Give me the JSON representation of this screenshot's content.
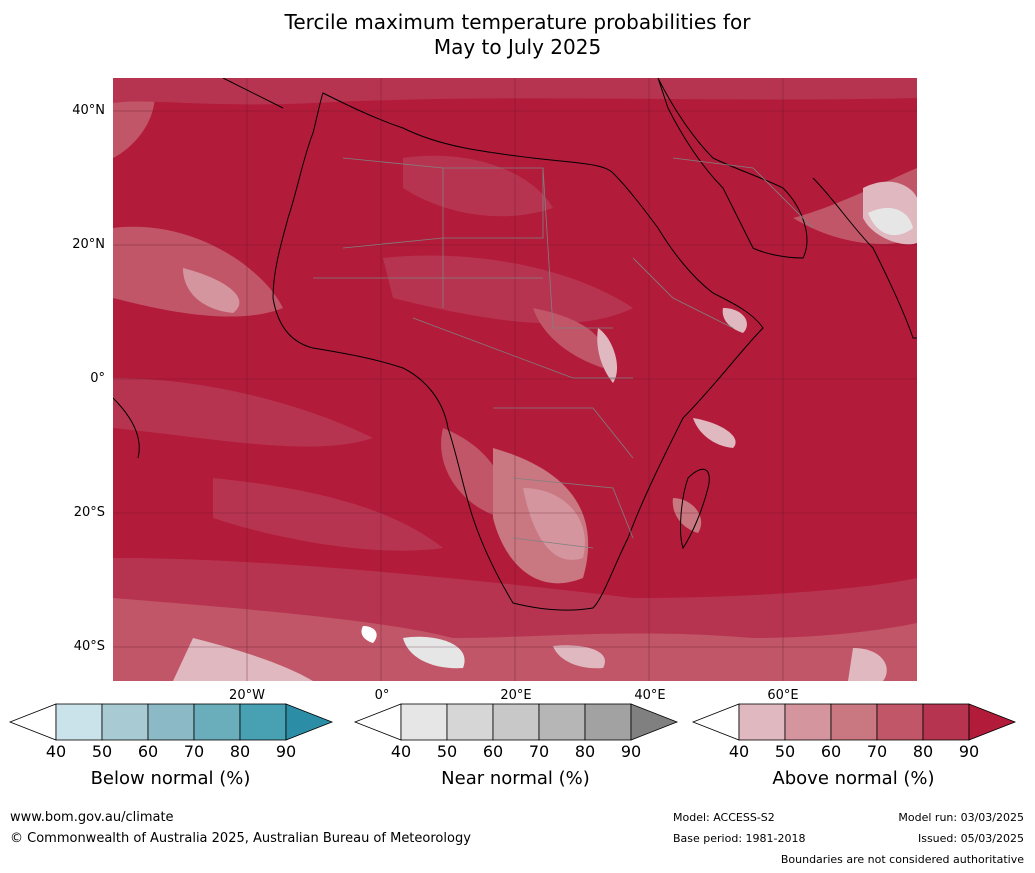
{
  "title": {
    "line1": "Tercile maximum temperature probabilities for",
    "line2": "May to July 2025"
  },
  "map": {
    "lat_labels": [
      "40°N",
      "20°N",
      "0°",
      "20°S",
      "40°S"
    ],
    "lon_labels": [
      "20°W",
      "0°",
      "20°E",
      "40°E",
      "60°E"
    ],
    "dominant_color": "#b31b3a",
    "region": "Africa"
  },
  "legends": [
    {
      "name": "Below normal (%)",
      "ticks": [
        "40",
        "50",
        "60",
        "70",
        "80",
        "90"
      ],
      "colors": [
        "#ffffff",
        "#cae3ea",
        "#a8cbd3",
        "#8bb9c5",
        "#6aadbb",
        "#48a0b3",
        "#2c8ea6"
      ]
    },
    {
      "name": "Near normal (%)",
      "ticks": [
        "40",
        "50",
        "60",
        "70",
        "80",
        "90"
      ],
      "colors": [
        "#ffffff",
        "#e6e6e6",
        "#d6d6d6",
        "#c8c8c8",
        "#b6b6b6",
        "#a2a2a2",
        "#808080"
      ]
    },
    {
      "name": "Above normal (%)",
      "ticks": [
        "40",
        "50",
        "60",
        "70",
        "80",
        "90"
      ],
      "colors": [
        "#ffffff",
        "#e0b8bf",
        "#d4959e",
        "#c97780",
        "#c05668",
        "#b73450",
        "#b31b3a"
      ]
    }
  ],
  "footer": {
    "url": "www.bom.gov.au/climate",
    "copyright": "© Commonwealth of Australia 2025, Australian Bureau of Meteorology",
    "model": "Model: ACCESS-S2",
    "base_period": "Base period: 1981-2018",
    "model_run": "Model run: 03/03/2025",
    "issued": "Issued: 05/03/2025",
    "disclaimer": "Boundaries are not considered authoritative"
  }
}
